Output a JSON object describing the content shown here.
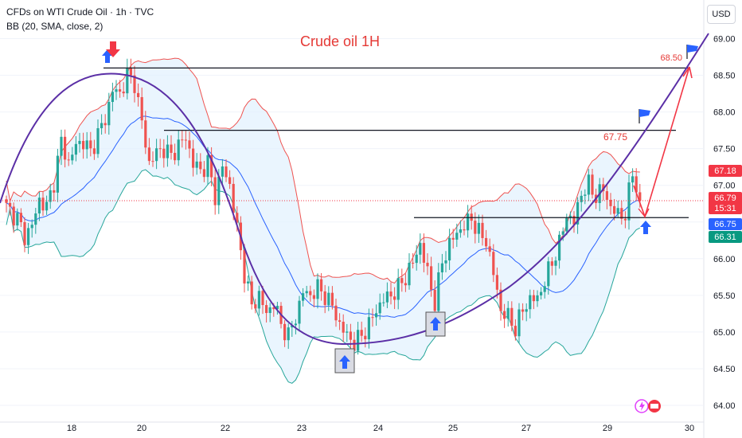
{
  "header": {
    "symbol_line": "CFDs on WTI Crude Oil · 1h · TVC",
    "indicator_line": "BB (20, SMA, close, 2)"
  },
  "currency_button": "USD",
  "colors": {
    "up": "#26a69a",
    "down": "#ef5350",
    "bb_basis": "#2962ff",
    "bb_band": "#ef5350",
    "bb_band_lower": "#26a69a",
    "bb_fill": "#e3f2fd",
    "curve": "#5b2fa6",
    "arrow_blue": "#2962ff",
    "arrow_red": "#f23645",
    "price_tag_red": "#f23645",
    "price_tag_blue": "#2962ff",
    "price_tag_green": "#089981"
  },
  "chart_data": {
    "type": "candlestick",
    "title": "Crude oil 1H",
    "y_ticks": [
      64.0,
      64.5,
      65.0,
      65.5,
      66.0,
      66.5,
      67.0,
      67.5,
      68.0,
      68.5,
      69.0
    ],
    "ylim": [
      63.95,
      69.25
    ],
    "x_ticks": [
      "18",
      "20",
      "22",
      "23",
      "24",
      "25",
      "27",
      "29",
      "30"
    ],
    "horizontal_lines": [
      68.6,
      67.75,
      66.56
    ],
    "annotations": [
      {
        "text": "68.50",
        "value": 68.5
      },
      {
        "text": "67.75",
        "value": 67.75
      }
    ],
    "price_tags": [
      {
        "label": "67.18",
        "value": 67.18,
        "color": "#f23645"
      },
      {
        "label": "66.79",
        "value": 66.79,
        "color": "#f23645",
        "sub": "15:31"
      },
      {
        "label": "66.75",
        "value": 66.75,
        "color": "#2962ff"
      },
      {
        "label": "66.31",
        "value": 66.31,
        "color": "#089981"
      }
    ],
    "close_path": [
      [
        0,
        66.7
      ],
      [
        3,
        66.55
      ],
      [
        5,
        66.3
      ],
      [
        7,
        66.45
      ],
      [
        9,
        66.8
      ],
      [
        11,
        66.7
      ],
      [
        13,
        67.05
      ],
      [
        15,
        67.6
      ],
      [
        17,
        67.3
      ],
      [
        19,
        67.55
      ],
      [
        21,
        67.6
      ],
      [
        23,
        67.45
      ],
      [
        25,
        67.7
      ],
      [
        27,
        67.9
      ],
      [
        29,
        68.3
      ],
      [
        31,
        68.25
      ],
      [
        33,
        68.5
      ],
      [
        35,
        68.4
      ],
      [
        37,
        67.85
      ],
      [
        39,
        67.3
      ],
      [
        41,
        67.45
      ],
      [
        43,
        67.5
      ],
      [
        45,
        67.4
      ],
      [
        47,
        67.55
      ],
      [
        49,
        67.65
      ],
      [
        51,
        67.3
      ],
      [
        53,
        67.2
      ],
      [
        55,
        67.3
      ],
      [
        57,
        66.85
      ],
      [
        59,
        67.25
      ],
      [
        61,
        67.0
      ],
      [
        63,
        66.4
      ],
      [
        65,
        65.8
      ],
      [
        67,
        65.35
      ],
      [
        69,
        65.5
      ],
      [
        71,
        65.25
      ],
      [
        73,
        65.4
      ],
      [
        75,
        65.1
      ],
      [
        77,
        64.95
      ],
      [
        79,
        65.2
      ],
      [
        81,
        65.55
      ],
      [
        83,
        65.5
      ],
      [
        85,
        65.6
      ],
      [
        87,
        65.5
      ],
      [
        89,
        65.35
      ],
      [
        91,
        65.1
      ],
      [
        93,
        64.95
      ],
      [
        95,
        64.85
      ],
      [
        97,
        64.95
      ],
      [
        99,
        65.1
      ],
      [
        101,
        65.3
      ],
      [
        103,
        65.45
      ],
      [
        105,
        65.5
      ],
      [
        107,
        65.6
      ],
      [
        109,
        65.75
      ],
      [
        111,
        65.95
      ],
      [
        113,
        66.2
      ],
      [
        115,
        65.8
      ],
      [
        117,
        65.4
      ],
      [
        119,
        65.95
      ],
      [
        121,
        66.2
      ],
      [
        123,
        66.35
      ],
      [
        125,
        66.45
      ],
      [
        127,
        66.55
      ],
      [
        129,
        66.35
      ],
      [
        131,
        66.25
      ],
      [
        133,
        65.8
      ],
      [
        135,
        65.3
      ],
      [
        137,
        65.2
      ],
      [
        139,
        65.05
      ],
      [
        141,
        65.3
      ],
      [
        143,
        65.45
      ],
      [
        145,
        65.45
      ],
      [
        147,
        65.7
      ],
      [
        149,
        65.95
      ],
      [
        151,
        66.2
      ],
      [
        153,
        66.6
      ],
      [
        155,
        66.5
      ],
      [
        157,
        66.9
      ],
      [
        159,
        67.0
      ],
      [
        161,
        66.85
      ],
      [
        163,
        66.95
      ],
      [
        165,
        66.7
      ],
      [
        167,
        66.6
      ],
      [
        169,
        66.6
      ],
      [
        171,
        67.18
      ],
      [
        173,
        66.79
      ]
    ]
  }
}
